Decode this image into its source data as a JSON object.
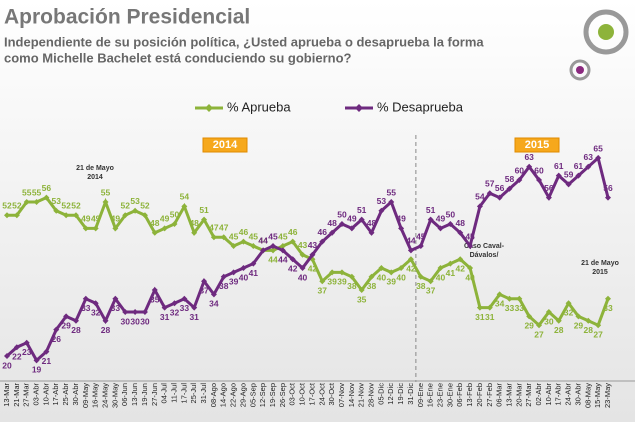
{
  "chart_data": {
    "type": "line",
    "title": "Aprobación Presidencial",
    "subtitle": [
      "Independiente de su posición política, ¿Usted aprueba o desaprueba la forma",
      "como Michelle Bachelet está conduciendo su gobierno?"
    ],
    "categories": [
      "13-Mar",
      "21-Mar",
      "27-Mar",
      "03-Abr",
      "10-Abr",
      "17-Abr",
      "25-Abr",
      "30-Abr",
      "09-May",
      "16-May",
      "24-May",
      "30-May",
      "06-Jun",
      "13-Jun",
      "19-Jun",
      "27-Jun",
      "04-Jul",
      "11-Jul",
      "17-Jul",
      "25-Jul",
      "31-Jul",
      "08-Ago",
      "14-Ago",
      "22-Ago",
      "29-Ago",
      "05-Sep",
      "12-Sep",
      "19-Sep",
      "26-Sep",
      "03-Oct",
      "10-Oct",
      "17-Oct",
      "24-Oct",
      "30-Oct",
      "07-Nov",
      "14-Nov",
      "21-Nov",
      "28-Nov",
      "05-Dic",
      "12-Dic",
      "19-Dic",
      "31-Dic",
      "09-Ene",
      "16-Ene",
      "23-Ene",
      "30-Ene",
      "06-Feb",
      "13-Feb",
      "20-Feb",
      "27-Feb",
      "06-Mar",
      "13-Mar",
      "20-Mar",
      "27-Mar",
      "02-Abr",
      "10-Abr",
      "17-Abr",
      "24-Abr",
      "30-Abr",
      "08-May",
      "15-May",
      "23-May"
    ],
    "series": [
      {
        "name": "% Aprueba",
        "color": "#8db33a",
        "values": [
          52,
          52,
          55,
          55,
          56,
          53,
          52,
          52,
          49,
          49,
          55,
          49,
          52,
          53,
          52,
          48,
          49,
          50,
          54,
          48,
          51,
          47,
          47,
          45,
          46,
          45,
          44,
          44,
          45,
          46,
          43,
          42,
          37,
          39,
          39,
          38,
          35,
          38,
          40,
          39,
          40,
          42,
          38,
          37,
          40,
          41,
          42,
          40,
          31,
          31,
          34,
          33,
          33,
          29,
          27,
          30,
          28,
          32,
          29,
          28,
          27,
          33
        ]
      },
      {
        "name": "% Desaprueba",
        "color": "#6e2a7f",
        "values": [
          20,
          22,
          23,
          19,
          21,
          26,
          29,
          28,
          33,
          32,
          28,
          33,
          30,
          30,
          30,
          35,
          31,
          32,
          33,
          31,
          37,
          34,
          38,
          39,
          40,
          41,
          44,
          45,
          44,
          42,
          40,
          43,
          46,
          48,
          50,
          49,
          51,
          48,
          53,
          55,
          49,
          44,
          45,
          51,
          49,
          50,
          48,
          45,
          54,
          57,
          56,
          58,
          60,
          63,
          60,
          56,
          61,
          59,
          61,
          63,
          65,
          56
        ]
      }
    ],
    "ylim": [
      15,
      70
    ],
    "periods": [
      "2014",
      "2015"
    ],
    "annotations": [
      [
        "21 de Mayo",
        "2014"
      ],
      [
        "Caso Caval-",
        "Dávalos/"
      ],
      [
        "21 de Mayo",
        "2015"
      ]
    ]
  }
}
